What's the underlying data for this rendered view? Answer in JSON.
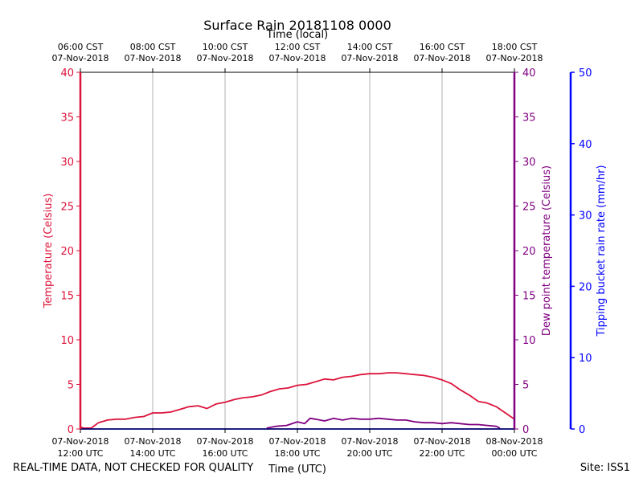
{
  "chart_data": {
    "type": "line",
    "title": "Surface Rain 20181108 0000",
    "top_axis_label": "Time (local)",
    "xlabel": "Time (UTC)",
    "x_range_hours": [
      0,
      12
    ],
    "top_ticks": [
      {
        "hour": 0,
        "time": "06:00 CST",
        "date": "07-Nov-2018"
      },
      {
        "hour": 2,
        "time": "08:00 CST",
        "date": "07-Nov-2018"
      },
      {
        "hour": 4,
        "time": "10:00 CST",
        "date": "07-Nov-2018"
      },
      {
        "hour": 6,
        "time": "12:00 CST",
        "date": "07-Nov-2018"
      },
      {
        "hour": 8,
        "time": "14:00 CST",
        "date": "07-Nov-2018"
      },
      {
        "hour": 10,
        "time": "16:00 CST",
        "date": "07-Nov-2018"
      },
      {
        "hour": 12,
        "time": "18:00 CST",
        "date": "07-Nov-2018"
      }
    ],
    "bottom_ticks": [
      {
        "hour": 0,
        "date": "07-Nov-2018",
        "time": "12:00 UTC"
      },
      {
        "hour": 2,
        "date": "07-Nov-2018",
        "time": "14:00 UTC"
      },
      {
        "hour": 4,
        "date": "07-Nov-2018",
        "time": "16:00 UTC"
      },
      {
        "hour": 6,
        "date": "07-Nov-2018",
        "time": "18:00 UTC"
      },
      {
        "hour": 8,
        "date": "07-Nov-2018",
        "time": "20:00 UTC"
      },
      {
        "hour": 10,
        "date": "07-Nov-2018",
        "time": "22:00 UTC"
      },
      {
        "hour": 12,
        "date": "08-Nov-2018",
        "time": "00:00 UTC"
      }
    ],
    "axes": {
      "temperature": {
        "label": "Temperature (Celsius)",
        "ylim": [
          0,
          40
        ],
        "ticks": [
          0,
          5,
          10,
          15,
          20,
          25,
          30,
          35,
          40
        ],
        "color": "#dc143c"
      },
      "dewpoint": {
        "label": "Dew point temperature (Celsius)",
        "ylim": [
          0,
          40
        ],
        "ticks": [
          0,
          5,
          10,
          15,
          20,
          25,
          30,
          35,
          40
        ],
        "color": "#800080"
      },
      "rain": {
        "label": "Tipping bucket rain rate (mm/hr)",
        "ylim": [
          0,
          50
        ],
        "ticks": [
          0,
          10,
          20,
          30,
          40,
          50
        ],
        "color": "#0000ff"
      }
    },
    "grid": true,
    "series": [
      {
        "name": "Temperature",
        "axis": "temperature",
        "color": "#dc143c",
        "x": [
          0,
          0.1,
          0.3,
          0.5,
          0.75,
          1.0,
          1.25,
          1.5,
          1.75,
          2.0,
          2.25,
          2.5,
          2.75,
          3.0,
          3.25,
          3.5,
          3.75,
          4.0,
          4.25,
          4.5,
          4.75,
          5.0,
          5.25,
          5.5,
          5.75,
          6.0,
          6.25,
          6.5,
          6.75,
          7.0,
          7.25,
          7.5,
          7.75,
          8.0,
          8.25,
          8.5,
          8.75,
          9.0,
          9.25,
          9.5,
          9.75,
          10.0,
          10.25,
          10.5,
          10.75,
          11.0,
          11.25,
          11.5,
          11.75,
          12.0
        ],
        "y": [
          0.2,
          0.1,
          0.1,
          0.7,
          1.0,
          1.1,
          1.1,
          1.3,
          1.4,
          1.8,
          1.8,
          1.9,
          2.2,
          2.5,
          2.6,
          2.3,
          2.8,
          3.0,
          3.3,
          3.5,
          3.6,
          3.8,
          4.2,
          4.5,
          4.6,
          4.9,
          5.0,
          5.3,
          5.6,
          5.5,
          5.8,
          5.9,
          6.1,
          6.2,
          6.2,
          6.3,
          6.3,
          6.2,
          6.1,
          6.0,
          5.8,
          5.5,
          5.1,
          4.4,
          3.8,
          3.1,
          2.9,
          2.5,
          1.8,
          1.1
        ]
      },
      {
        "name": "Dew point",
        "axis": "dewpoint",
        "color": "#800080",
        "x": [
          5.15,
          5.4,
          5.7,
          6.0,
          6.2,
          6.35,
          6.5,
          6.75,
          7.0,
          7.25,
          7.5,
          7.75,
          8.0,
          8.25,
          8.5,
          8.75,
          9.0,
          9.25,
          9.5,
          9.75,
          10.0,
          10.25,
          10.5,
          10.75,
          11.0,
          11.25,
          11.5,
          11.6
        ],
        "y": [
          0.1,
          0.3,
          0.4,
          0.8,
          0.6,
          1.2,
          1.1,
          0.9,
          1.2,
          1.0,
          1.2,
          1.1,
          1.1,
          1.2,
          1.1,
          1.0,
          1.0,
          0.8,
          0.7,
          0.7,
          0.6,
          0.7,
          0.6,
          0.5,
          0.5,
          0.4,
          0.3,
          0.1
        ]
      },
      {
        "name": "Rain rate",
        "axis": "rain",
        "color": "#0000ff",
        "x": [
          0,
          12
        ],
        "y": [
          0,
          0
        ]
      }
    ],
    "annotations": {
      "left": "REAL-TIME DATA, NOT CHECKED FOR QUALITY",
      "right": "Site: ISS1"
    }
  }
}
